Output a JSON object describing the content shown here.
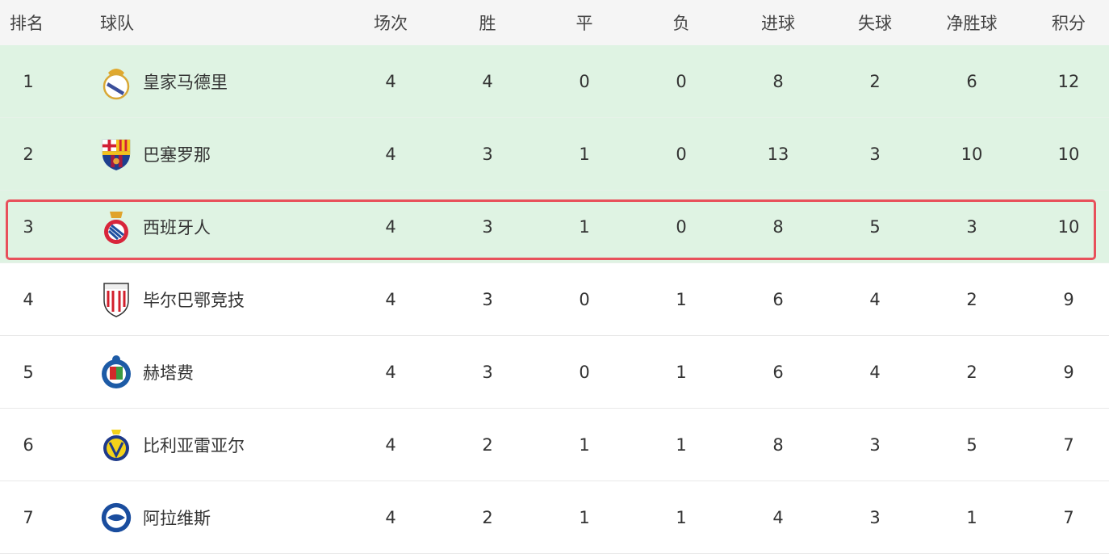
{
  "headers": {
    "rank": "排名",
    "team": "球队",
    "played": "场次",
    "won": "胜",
    "drawn": "平",
    "lost": "负",
    "gf": "进球",
    "ga": "失球",
    "gd": "净胜球",
    "pts": "积分"
  },
  "highlight_color": "#dff3e3",
  "selected_border_color": "#e8505b",
  "rows": [
    {
      "rank": "1",
      "team": "皇家马德里",
      "logo": "real-madrid-crest-icon",
      "played": "4",
      "won": "4",
      "drawn": "0",
      "lost": "0",
      "gf": "8",
      "ga": "2",
      "gd": "6",
      "pts": "12"
    },
    {
      "rank": "2",
      "team": "巴塞罗那",
      "logo": "barcelona-crest-icon",
      "played": "4",
      "won": "3",
      "drawn": "1",
      "lost": "0",
      "gf": "13",
      "ga": "3",
      "gd": "10",
      "pts": "10"
    },
    {
      "rank": "3",
      "team": "西班牙人",
      "logo": "espanyol-crest-icon",
      "played": "4",
      "won": "3",
      "drawn": "1",
      "lost": "0",
      "gf": "8",
      "ga": "5",
      "gd": "3",
      "pts": "10"
    },
    {
      "rank": "4",
      "team": "毕尔巴鄂竞技",
      "logo": "athletic-bilbao-crest-icon",
      "played": "4",
      "won": "3",
      "drawn": "0",
      "lost": "1",
      "gf": "6",
      "ga": "4",
      "gd": "2",
      "pts": "9"
    },
    {
      "rank": "5",
      "team": "赫塔费",
      "logo": "getafe-crest-icon",
      "played": "4",
      "won": "3",
      "drawn": "0",
      "lost": "1",
      "gf": "6",
      "ga": "4",
      "gd": "2",
      "pts": "9"
    },
    {
      "rank": "6",
      "team": "比利亚雷亚尔",
      "logo": "villarreal-crest-icon",
      "played": "4",
      "won": "2",
      "drawn": "1",
      "lost": "1",
      "gf": "8",
      "ga": "3",
      "gd": "5",
      "pts": "7"
    },
    {
      "rank": "7",
      "team": "阿拉维斯",
      "logo": "alaves-crest-icon",
      "played": "4",
      "won": "2",
      "drawn": "1",
      "lost": "1",
      "gf": "4",
      "ga": "3",
      "gd": "1",
      "pts": "7"
    }
  ]
}
